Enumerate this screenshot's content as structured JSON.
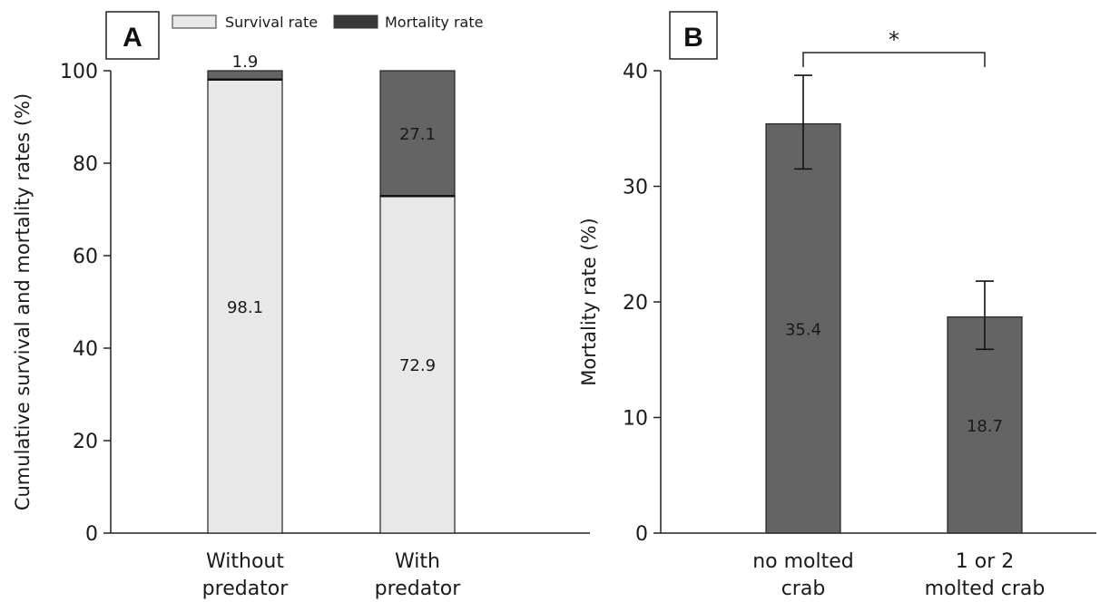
{
  "chart_data": [
    {
      "panel": "A",
      "type": "bar",
      "stacked": true,
      "categories": [
        "Without predator",
        "With predator"
      ],
      "category_lines": [
        [
          "Without",
          "predator"
        ],
        [
          "With",
          "predator"
        ]
      ],
      "series": [
        {
          "name": "Survival rate",
          "values": [
            98.1,
            72.9
          ],
          "color": "#e8e8e8",
          "labels": [
            "98.1",
            "72.9"
          ],
          "label_color": "#1a1a1a"
        },
        {
          "name": "Mortality rate",
          "values": [
            1.9,
            27.1
          ],
          "color": "#646464",
          "labels": [
            "1.9",
            "27.1"
          ],
          "label_color": "#ffffff"
        }
      ],
      "ylabel": "Cumulative survival and mortality rates (%)",
      "ylim": [
        0,
        100
      ],
      "yticks": [
        0,
        20,
        40,
        60,
        80,
        100
      ],
      "grid": false,
      "legend": {
        "placement": "top",
        "items": [
          "Survival rate",
          "Mortality rate"
        ]
      }
    },
    {
      "panel": "B",
      "type": "bar",
      "categories": [
        "no molted crab",
        "1 or 2 molted crab"
      ],
      "category_lines": [
        [
          "no molted",
          "crab"
        ],
        [
          "1 or 2",
          "molted crab"
        ]
      ],
      "values": [
        35.4,
        18.7
      ],
      "value_labels": [
        "35.4",
        "18.7"
      ],
      "error_low": [
        31.5,
        15.9
      ],
      "error_high": [
        39.6,
        21.8
      ],
      "bar_color": "#646464",
      "label_color": "#ffffff",
      "ylabel": "Mortality rate (%)",
      "ylim": [
        0,
        40
      ],
      "yticks": [
        0,
        10,
        20,
        30,
        40
      ],
      "grid": false,
      "significance": "*"
    }
  ]
}
